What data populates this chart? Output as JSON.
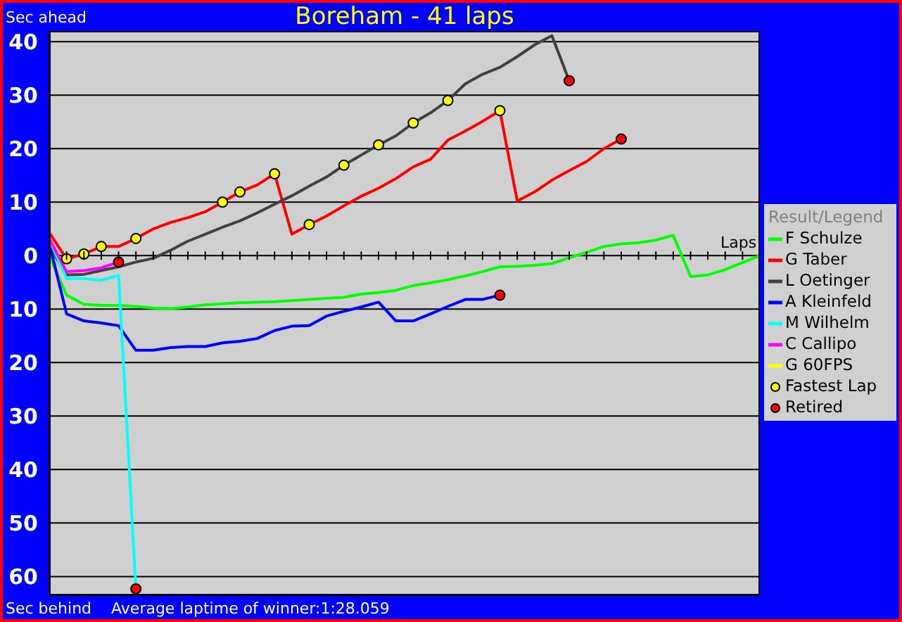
{
  "chart_data": {
    "type": "line",
    "title": "Boreham - 41 laps",
    "ylabel": "Sec ahead",
    "xlabel": "Laps",
    "legend_title": "Result/Legend",
    "annotations": [
      "Sec behind",
      "Average laptime of winner:1:28.059"
    ],
    "categories": [
      null,
      null,
      null,
      null,
      null,
      null,
      null,
      null,
      null,
      null,
      null,
      null,
      null,
      null,
      null,
      null,
      null,
      null,
      null,
      null,
      null,
      null,
      null,
      null,
      null,
      null,
      null,
      null,
      null,
      null,
      null,
      null,
      null,
      null,
      null,
      null,
      null,
      null,
      null,
      null,
      null,
      null
    ],
    "ylim": [
      -63.5,
      42
    ],
    "yticks": [
      40,
      30,
      20,
      10,
      0,
      {
        "value": -10,
        "label": "10"
      },
      {
        "value": -20,
        "label": "20"
      },
      {
        "value": -30,
        "label": "30"
      },
      {
        "value": -40,
        "label": "40"
      },
      {
        "value": -50,
        "label": "50"
      },
      {
        "value": -60,
        "label": "60"
      }
    ],
    "grid": "y",
    "legend": "right",
    "marker": "none",
    "line_style": "solid",
    "series": [
      {
        "name": "F Schulze",
        "color": "#00ff00",
        "values": [
          0,
          -7.4,
          -9.1,
          -9.3,
          -9.3,
          -9.5,
          -9.8,
          -9.9,
          -9.6,
          -9.2,
          -9,
          -8.8,
          -8.7,
          -8.6,
          -8.4,
          -8.2,
          -8,
          -7.8,
          -7.2,
          -6.9,
          -6.5,
          -5.6,
          -5.1,
          -4.5,
          -3.8,
          -3,
          -2.1,
          -2,
          -1.8,
          -1.5,
          -0.4,
          0.6,
          1.7,
          2.2,
          2.4,
          2.9,
          3.8,
          -3.9,
          -3.6,
          -2.6,
          -1.3,
          0
        ]
      },
      {
        "name": "G Taber",
        "color": "#ff0000",
        "values": [
          4.3,
          -0.6,
          0.3,
          1.7,
          1.7,
          3.2,
          5,
          6.2,
          7.1,
          8.2,
          10,
          11.9,
          13.2,
          15.3,
          4,
          5.8,
          7.4,
          9.3,
          11.1,
          12.6,
          14.4,
          16.6,
          18,
          21.6,
          23.3,
          25.1,
          27.1,
          10.2,
          11.9,
          14.1,
          15.9,
          17.6,
          20,
          21.8,
          null,
          null,
          null,
          null,
          null,
          null,
          null,
          null
        ]
      },
      {
        "name": "L Oetinger",
        "color": "#404040",
        "values": [
          1.8,
          -3.6,
          -3.5,
          -2.8,
          -2.1,
          -1.2,
          -0.5,
          1,
          2.7,
          4,
          5.3,
          6.5,
          8,
          9.6,
          11.2,
          13,
          14.7,
          16.9,
          18.8,
          20.7,
          22.4,
          24.8,
          26.7,
          29,
          32.1,
          33.9,
          35.2,
          37.2,
          39.4,
          41.1,
          32.7,
          null,
          null,
          null,
          null,
          null,
          null,
          null,
          null,
          null,
          null,
          null
        ]
      },
      {
        "name": "A Kleinfeld",
        "color": "#0000ff",
        "values": [
          2.3,
          -10.9,
          -12.2,
          -12.6,
          -13.1,
          -17.7,
          -17.7,
          -17.2,
          -17,
          -17,
          -16.3,
          -16,
          -15.5,
          -14,
          -13.2,
          -13.1,
          -11.3,
          -10.4,
          -9.6,
          -8.7,
          -12.2,
          -12.2,
          -10.9,
          -9.5,
          -8.2,
          -8.2,
          -7.4,
          null,
          null,
          null,
          null,
          null,
          null,
          null,
          null,
          null,
          null,
          null,
          null,
          null,
          null,
          null
        ]
      },
      {
        "name": "M Wilhelm",
        "color": "#00ffff",
        "values": [
          3,
          -4.3,
          -4.3,
          -4.6,
          -3.7,
          -62.3,
          null,
          null,
          null,
          null,
          null,
          null,
          null,
          null,
          null,
          null,
          null,
          null,
          null,
          null,
          null,
          null,
          null,
          null,
          null,
          null,
          null,
          null,
          null,
          null,
          null,
          null,
          null,
          null,
          null,
          null,
          null,
          null,
          null,
          null,
          null,
          null
        ]
      },
      {
        "name": "C Callipo",
        "color": "#ff00ff",
        "values": [
          3.2,
          -3,
          -2.8,
          -2.3,
          -1.2,
          null,
          null,
          null,
          null,
          null,
          null,
          null,
          null,
          null,
          null,
          null,
          null,
          null,
          null,
          null,
          null,
          null,
          null,
          null,
          null,
          null,
          null,
          null,
          null,
          null,
          null,
          null,
          null,
          null,
          null,
          null,
          null,
          null,
          null,
          null,
          null,
          null
        ]
      },
      {
        "name": "G 60FPS",
        "color": "#ffff00",
        "values": [
          null,
          null,
          null,
          null,
          null,
          null,
          null,
          null,
          null,
          null,
          null,
          null,
          null,
          null,
          null,
          null,
          null,
          null,
          null,
          null,
          null,
          null,
          null,
          null,
          null,
          null,
          null,
          null,
          null,
          null,
          null,
          null,
          null,
          null,
          null,
          null,
          null,
          null,
          null,
          null,
          null,
          null
        ]
      },
      {
        "name": "Fastest Lap",
        "type": "scatter",
        "marker": "circle",
        "color": "#ffff00",
        "values": [
          null,
          -0.6,
          0.3,
          1.7,
          null,
          3.2,
          null,
          null,
          null,
          null,
          10,
          11.9,
          null,
          15.3,
          null,
          5.8,
          null,
          16.9,
          null,
          20.7,
          null,
          24.8,
          null,
          29,
          null,
          null,
          27.1,
          null,
          null,
          null,
          null,
          null,
          null,
          null,
          null,
          null,
          null,
          null,
          null,
          null,
          null,
          null
        ]
      },
      {
        "name": "Retired",
        "type": "scatter",
        "marker": "circle",
        "color": "#ff0000",
        "values": [
          null,
          null,
          null,
          null,
          -1.2,
          -62.3,
          null,
          null,
          null,
          null,
          null,
          null,
          null,
          null,
          null,
          null,
          null,
          null,
          null,
          null,
          null,
          null,
          null,
          null,
          null,
          null,
          -7.4,
          null,
          null,
          null,
          32.7,
          null,
          null,
          21.8,
          null,
          null,
          null,
          null,
          null,
          null,
          null,
          null
        ]
      }
    ]
  }
}
